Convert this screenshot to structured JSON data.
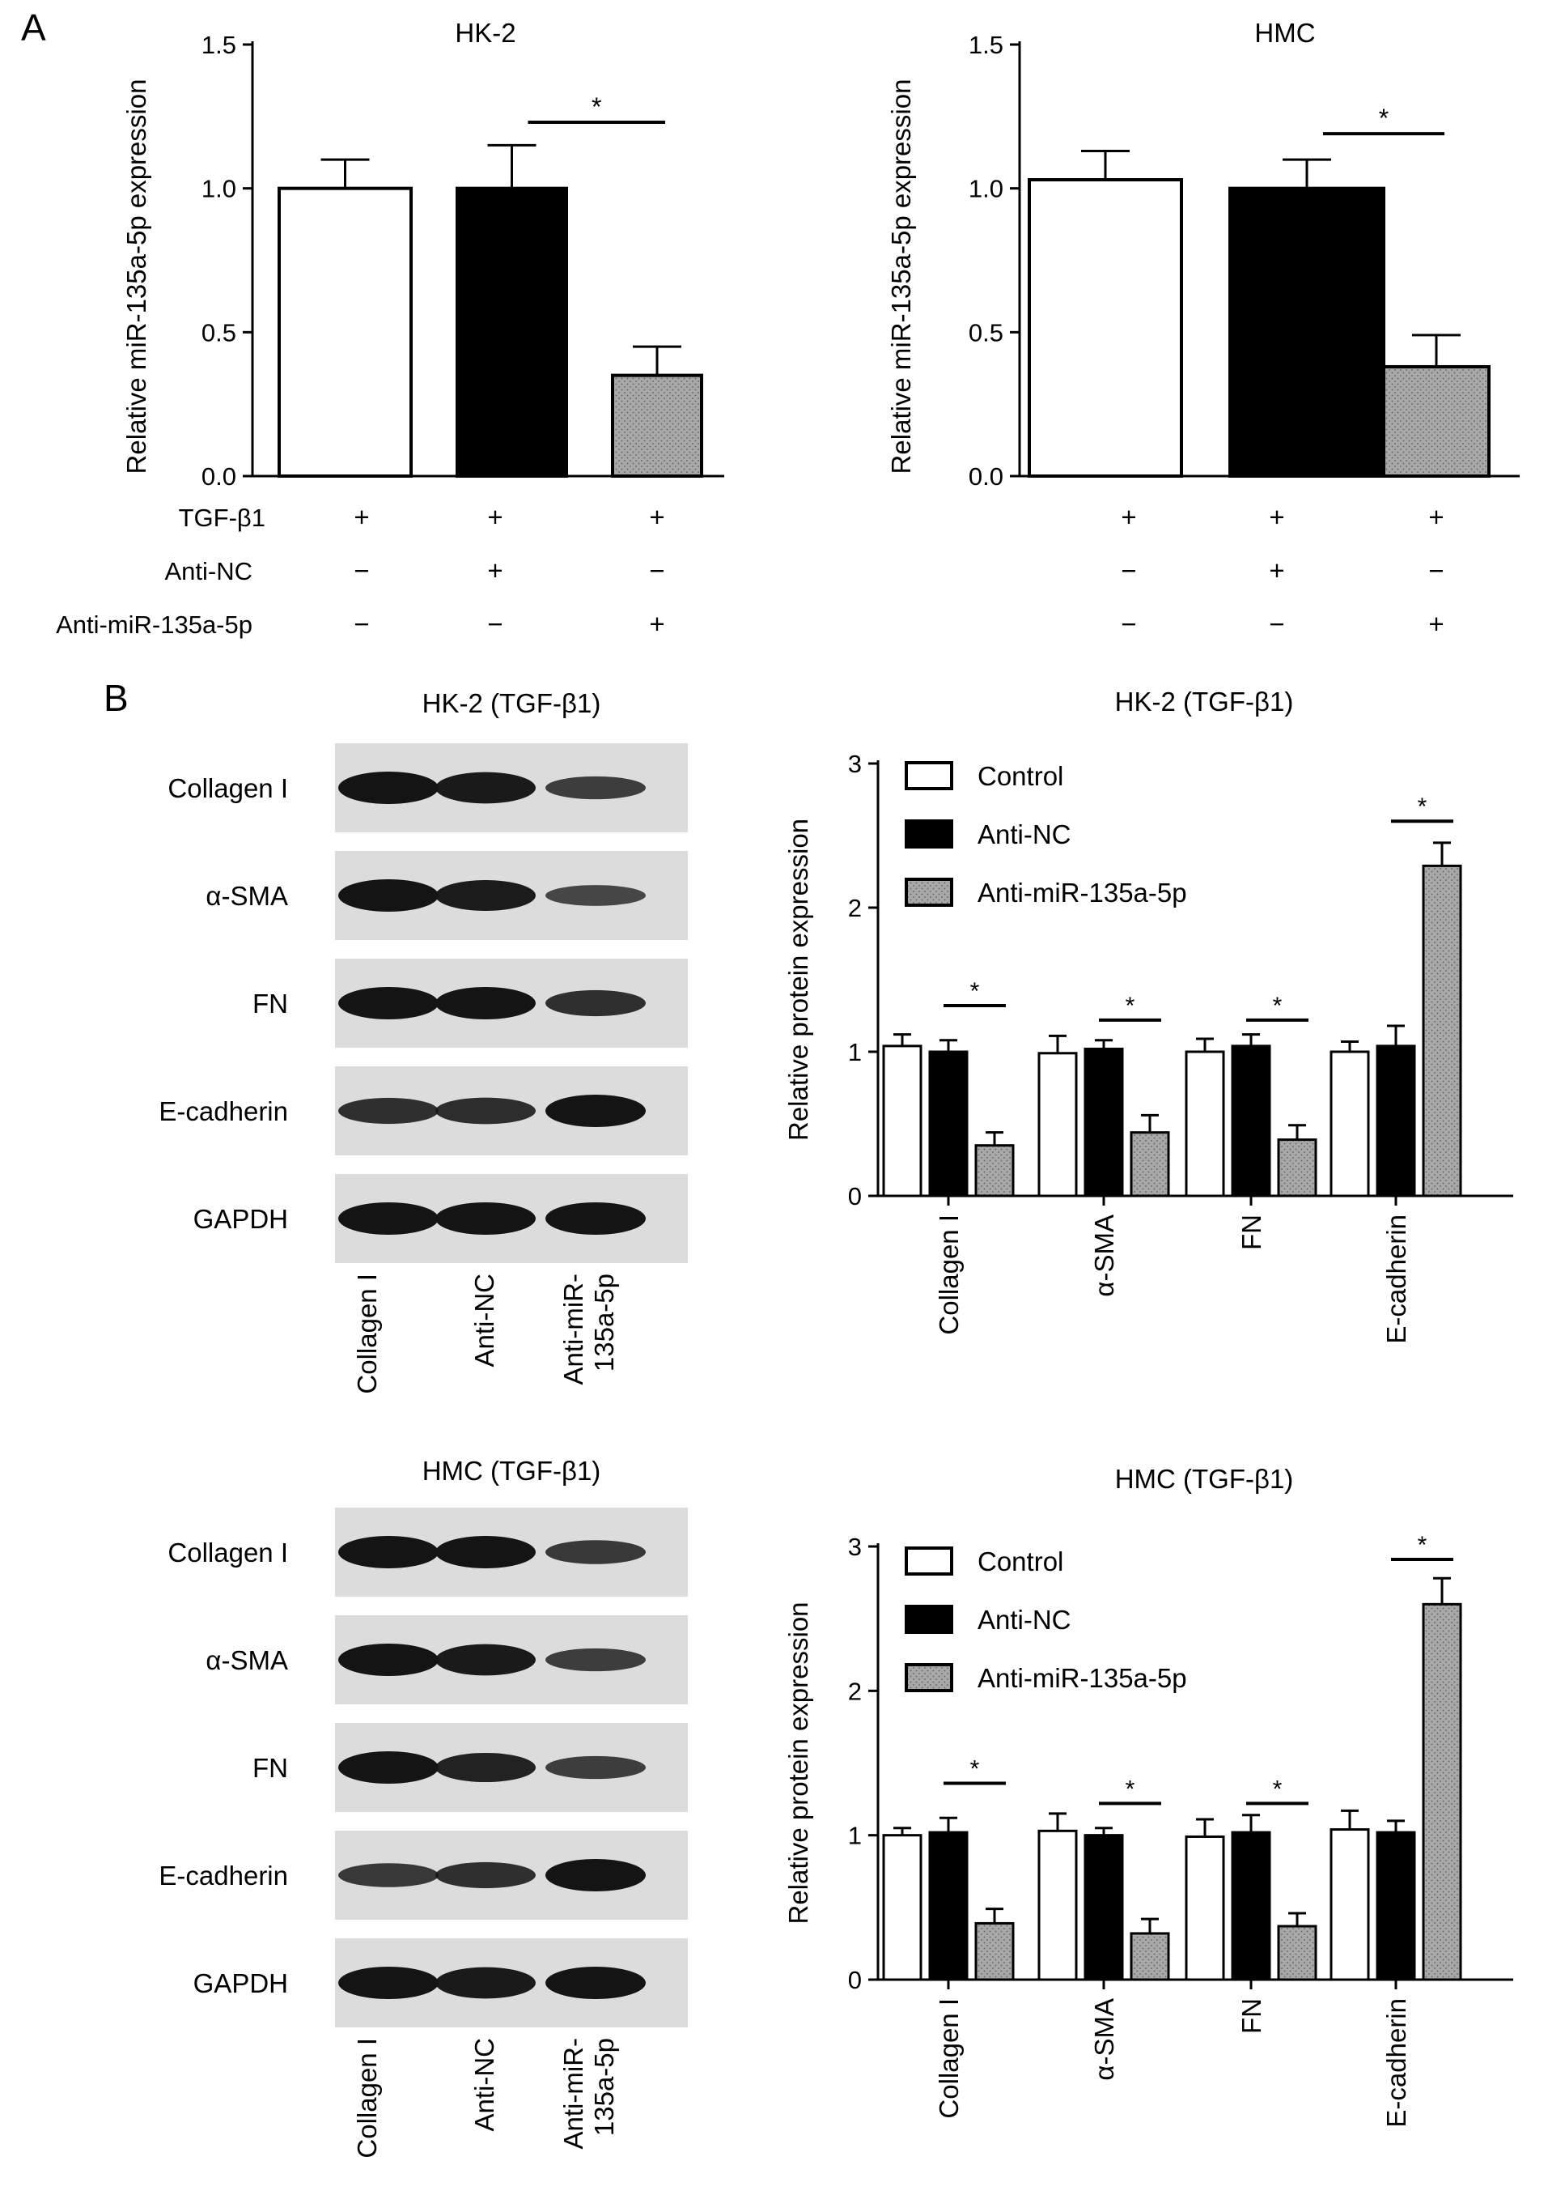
{
  "panels": {
    "A": "A",
    "B": "B"
  },
  "colors": {
    "control": "#ffffff",
    "anti_nc": "#000000",
    "anti_mir": "#a8a8a8",
    "blot_bg": "#dcdcdc",
    "band": "#141414"
  },
  "conditions": {
    "labels": [
      "TGF-β1",
      "Anti-NC",
      "Anti-miR-135a-5p"
    ],
    "signs": [
      [
        "+",
        "+",
        "+"
      ],
      [
        "−",
        "+",
        "−"
      ],
      [
        "−",
        "−",
        "+"
      ]
    ]
  },
  "blots": [
    {
      "title": "HK-2 (TGF-β1)",
      "rows": [
        "Collagen I",
        "α-SMA",
        "FN",
        "E-cadherin",
        "GAPDH"
      ],
      "lanes": [
        "Collagen I",
        "Anti-NC",
        "Anti-miR-135a-5p"
      ],
      "lane_lines": [
        [
          "Collagen I"
        ],
        [
          "Anti-NC"
        ],
        [
          "Anti-miR-",
          "135a-5p"
        ]
      ],
      "intensity": [
        [
          1.0,
          0.95,
          0.55
        ],
        [
          1.0,
          0.92,
          0.45
        ],
        [
          1.0,
          1.0,
          0.7
        ],
        [
          0.7,
          0.72,
          1.0
        ],
        [
          1.0,
          1.0,
          1.0
        ]
      ]
    },
    {
      "title": "HMC (TGF-β1)",
      "rows": [
        "Collagen I",
        "α-SMA",
        "FN",
        "E-cadherin",
        "GAPDH"
      ],
      "lanes": [
        "Collagen I",
        "Anti-NC",
        "Anti-miR-135a-5p"
      ],
      "lane_lines": [
        [
          "Collagen I"
        ],
        [
          "Anti-NC"
        ],
        [
          "Anti-miR-",
          "135a-5p"
        ]
      ],
      "intensity": [
        [
          1.0,
          1.0,
          0.6
        ],
        [
          1.0,
          0.95,
          0.55
        ],
        [
          1.0,
          0.85,
          0.55
        ],
        [
          0.6,
          0.7,
          1.0
        ],
        [
          1.0,
          0.95,
          1.0
        ]
      ]
    }
  ],
  "chart_data": [
    {
      "type": "bar",
      "title": "HK-2",
      "ylabel": "Relative miR-135a-5p expression",
      "ylim": [
        0,
        1.5
      ],
      "yticks": [
        0.0,
        0.5,
        1.0,
        1.5
      ],
      "ytick_labels": [
        "0.0",
        "0.5",
        "1.0",
        "1.5"
      ],
      "series": [
        {
          "values": [
            1.0,
            1.0,
            0.35
          ],
          "errors": [
            0.1,
            0.15,
            0.1
          ]
        }
      ],
      "significance": [
        {
          "from": 1,
          "to": 2,
          "label": "*",
          "y": 1.23
        }
      ]
    },
    {
      "type": "bar",
      "title": "HMC",
      "ylabel": "Relative miR-135a-5p expression",
      "ylim": [
        0,
        1.5
      ],
      "yticks": [
        0.0,
        0.5,
        1.0,
        1.5
      ],
      "ytick_labels": [
        "0.0",
        "0.5",
        "1.0",
        "1.5"
      ],
      "series": [
        {
          "values": [
            1.03,
            1.0,
            0.38
          ],
          "errors": [
            0.1,
            0.1,
            0.11
          ]
        }
      ],
      "significance": [
        {
          "from": 1,
          "to": 2,
          "label": "*",
          "y": 1.19
        }
      ]
    },
    {
      "type": "bar",
      "title": "HK-2 (TGF-β1)",
      "ylabel": "Relative protein expression",
      "ylim": [
        0,
        3
      ],
      "yticks": [
        0,
        1,
        2,
        3
      ],
      "ytick_labels": [
        "0",
        "1",
        "2",
        "3"
      ],
      "categories": [
        "Collagen I",
        "α-SMA",
        "FN",
        "E-cadherin"
      ],
      "legend": {
        "position": "top-left"
      },
      "series": [
        {
          "name": "Control",
          "values": [
            1.04,
            0.99,
            1.0,
            1.0
          ],
          "errors": [
            0.08,
            0.12,
            0.09,
            0.07
          ]
        },
        {
          "name": "Anti-NC",
          "values": [
            1.0,
            1.02,
            1.04,
            1.04
          ],
          "errors": [
            0.08,
            0.06,
            0.08,
            0.14
          ]
        },
        {
          "name": "Anti-miR-135a-5p",
          "values": [
            0.35,
            0.44,
            0.39,
            2.29
          ],
          "errors": [
            0.09,
            0.12,
            0.1,
            0.16
          ]
        }
      ],
      "significance": [
        {
          "category": 0,
          "label": "*",
          "y": 1.32
        },
        {
          "category": 1,
          "label": "*",
          "y": 1.22
        },
        {
          "category": 2,
          "label": "*",
          "y": 1.22
        },
        {
          "category": 3,
          "label": "*",
          "y": 2.6
        }
      ]
    },
    {
      "type": "bar",
      "title": "HMC (TGF-β1)",
      "ylabel": "Relative protein expression",
      "ylim": [
        0,
        3
      ],
      "yticks": [
        0,
        1,
        2,
        3
      ],
      "ytick_labels": [
        "0",
        "1",
        "2",
        "3"
      ],
      "categories": [
        "Collagen I",
        "α-SMA",
        "FN",
        "E-cadherin"
      ],
      "legend": {
        "position": "top-left"
      },
      "series": [
        {
          "name": "Control",
          "values": [
            1.0,
            1.03,
            0.99,
            1.04
          ],
          "errors": [
            0.05,
            0.12,
            0.12,
            0.13
          ]
        },
        {
          "name": "Anti-NC",
          "values": [
            1.02,
            1.0,
            1.02,
            1.02
          ],
          "errors": [
            0.1,
            0.05,
            0.12,
            0.08
          ]
        },
        {
          "name": "Anti-miR-135a-5p",
          "values": [
            0.39,
            0.32,
            0.37,
            2.6
          ],
          "errors": [
            0.1,
            0.1,
            0.09,
            0.18
          ]
        }
      ],
      "significance": [
        {
          "category": 0,
          "label": "*",
          "y": 1.36
        },
        {
          "category": 1,
          "label": "*",
          "y": 1.22
        },
        {
          "category": 2,
          "label": "*",
          "y": 1.22
        },
        {
          "category": 3,
          "label": "*",
          "y": 2.91
        }
      ]
    }
  ]
}
